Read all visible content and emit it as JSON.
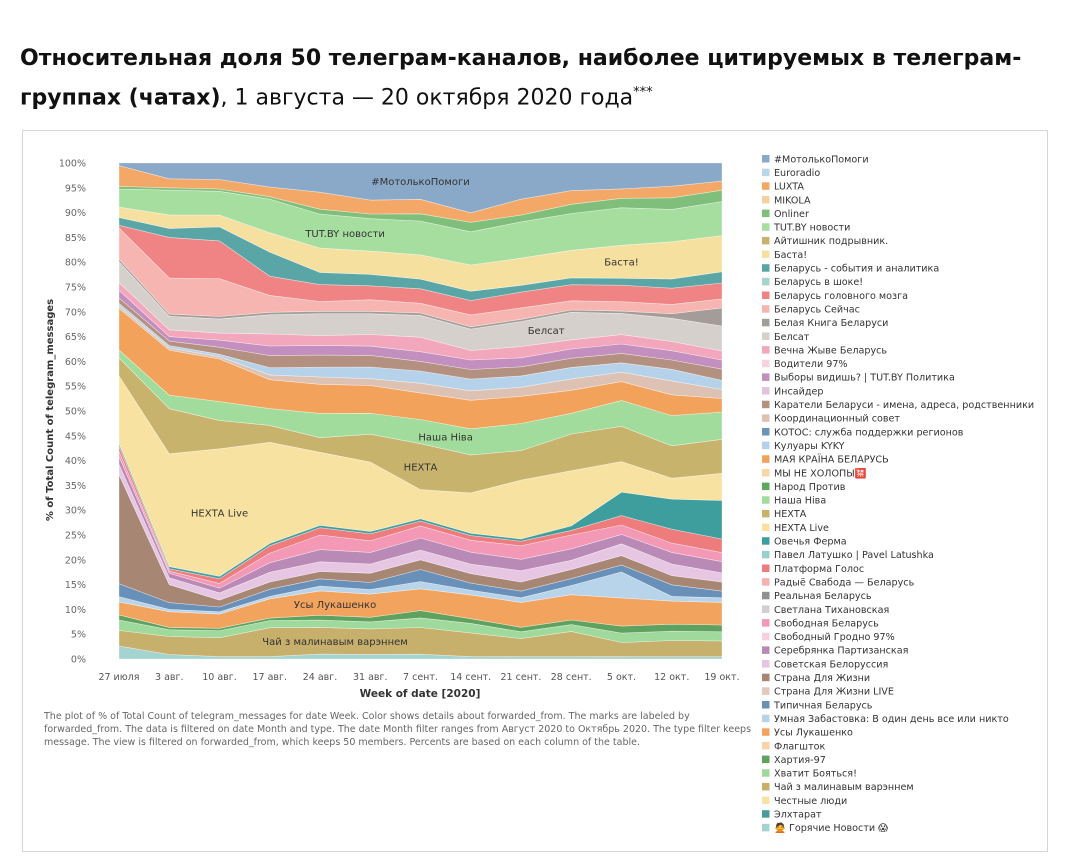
{
  "title": {
    "bold": "Относительная доля 50 телеграм-каналов, наиболее цитируемых в телеграм-группах (чатах)",
    "rest": ", 1 августа — 20 октября 2020 года",
    "sup": "***"
  },
  "note": "The plot of % of Total Count of telegram_messages for date Week. Color shows details about forwarded_from. The marks are labeled by forwarded_from. The data is filtered on date Month and type. The date Month filter ranges from Август 2020 to Октябрь 2020. The type filter keeps message. The view is filtered on forwarded_from, which keeps 50 members. Percents are based on each column of the table.",
  "chart_data": {
    "type": "area",
    "stacked": "percent",
    "xlabel": "Week of date [2020]",
    "ylabel": "% of Total Count of telegram_messages",
    "ylim": [
      0,
      100
    ],
    "yticks": [
      "0%",
      "5%",
      "10%",
      "15%",
      "20%",
      "25%",
      "30%",
      "35%",
      "40%",
      "45%",
      "50%",
      "55%",
      "60%",
      "65%",
      "70%",
      "75%",
      "80%",
      "85%",
      "90%",
      "95%",
      "100%"
    ],
    "categories": [
      "27 июля",
      "3 авг.",
      "10 авг.",
      "17 авг.",
      "24 авг.",
      "31 авг.",
      "7 сент.",
      "14 сент.",
      "21 сент.",
      "28 сент.",
      "5 окт.",
      "12 окт.",
      "19 окт."
    ],
    "legend_position": "right",
    "legend": [
      {
        "name": "#МотолькоПомоги",
        "color": "#8aa9c8"
      },
      {
        "name": "Euroradio",
        "color": "#b9d6ea"
      },
      {
        "name": "LUXTA",
        "color": "#f3a867"
      },
      {
        "name": "MIKOLA",
        "color": "#f7d0a0"
      },
      {
        "name": "Onliner",
        "color": "#7fbf7b"
      },
      {
        "name": "TUT.BY новости",
        "color": "#a6dea0"
      },
      {
        "name": "Айтишник подрывник.",
        "color": "#c9b26e"
      },
      {
        "name": "Баста!",
        "color": "#f6e0a0"
      },
      {
        "name": "Беларусь - события и аналитика",
        "color": "#5aa6a6"
      },
      {
        "name": "Беларусь в шоке!",
        "color": "#a8d4d0"
      },
      {
        "name": "Беларусь головного мозга",
        "color": "#f08383"
      },
      {
        "name": "Беларусь Сейчас",
        "color": "#f6b5b1"
      },
      {
        "name": "Белая Книга Беларуси",
        "color": "#a39c98"
      },
      {
        "name": "Белсат",
        "color": "#d6d0cc"
      },
      {
        "name": "Вечна Жывe Беларусь",
        "color": "#f2a7bd"
      },
      {
        "name": "Водители 97%",
        "color": "#f7d3e0"
      },
      {
        "name": "Выборы видишь? | TUT.BY Политика",
        "color": "#c38fbf"
      },
      {
        "name": "Инсайдер",
        "color": "#e2c3df"
      },
      {
        "name": "Каратели Беларуси - имена, адреса, родственники",
        "color": "#b3907f"
      },
      {
        "name": "Координационный совет",
        "color": "#ddc2b4"
      },
      {
        "name": "КОТОС: служба поддержки регионов",
        "color": "#6d93b8"
      },
      {
        "name": "Кулуары KYKY",
        "color": "#b5d2ea"
      },
      {
        "name": "МАЯ КРАЇНА БЕЛАРУСЬ",
        "color": "#f2a25a"
      },
      {
        "name": "МЫ НЕ ХОЛОПЫ🈲",
        "color": "#f8d6a8"
      },
      {
        "name": "Народ Против",
        "color": "#5fa85f"
      },
      {
        "name": "Наша Ніва",
        "color": "#a2dc9d"
      },
      {
        "name": "НЕХТА",
        "color": "#c8b36d"
      },
      {
        "name": "НЕХТА Live",
        "color": "#f8e2a2"
      },
      {
        "name": "Овечья Ферма",
        "color": "#3e9e9e"
      },
      {
        "name": "Павел Латушко | Pavel Latushka",
        "color": "#9ad0cb"
      },
      {
        "name": "Платформа Голос",
        "color": "#ee7c7c"
      },
      {
        "name": "Радыё Свабода — Беларусь",
        "color": "#f5b3ae"
      },
      {
        "name": "Реальная Беларусь",
        "color": "#8f8f8f"
      },
      {
        "name": "Светлана Тихановская",
        "color": "#cfcfcf"
      },
      {
        "name": "Свободная Беларусь",
        "color": "#f398b5"
      },
      {
        "name": "Свободный Гродно 97%",
        "color": "#f7cfe0"
      },
      {
        "name": "Серебрянка Партизанская",
        "color": "#b98ab6"
      },
      {
        "name": "Советская Белоруссия",
        "color": "#e6c6e2"
      },
      {
        "name": "Страна Для Жизни",
        "color": "#a88674"
      },
      {
        "name": "Страна Для Жизни LIVE",
        "color": "#e4c9bb"
      },
      {
        "name": "Типичная Беларусь",
        "color": "#6890b8"
      },
      {
        "name": "Умная Забастовка: В один день все или никто",
        "color": "#b8d4ea"
      },
      {
        "name": "Усы Лукашенко",
        "color": "#f2a45e"
      },
      {
        "name": "Флагшток",
        "color": "#f8d3a9"
      },
      {
        "name": "Хартия-97",
        "color": "#5fa15f"
      },
      {
        "name": "Хватит Бояться!",
        "color": "#9fd99b"
      },
      {
        "name": "Чай з малинавым варэннем",
        "color": "#c6b06c"
      },
      {
        "name": "Честные люди",
        "color": "#f8e3a6"
      },
      {
        "name": "Элхтарат",
        "color": "#4a9c9c"
      },
      {
        "name": "🙅 Горячие Новости 😱",
        "color": "#a5d3cf"
      }
    ],
    "series": [
      {
        "name": "🙅 Горячие Новости 😱",
        "values": [
          2.5,
          1.0,
          0.5,
          0.5,
          1.0,
          1.0,
          1.0,
          0.5,
          0.5,
          0.5,
          0.5,
          0.5,
          0.5
        ]
      },
      {
        "name": "Чай з малинавым варэннем",
        "values": [
          3.0,
          4.0,
          4.0,
          6.0,
          5.5,
          5.5,
          5.5,
          5.0,
          4.0,
          5.5,
          3.0,
          3.5,
          3.5
        ]
      },
      {
        "name": "Хватит Бояться!",
        "values": [
          2.0,
          1.5,
          1.5,
          1.5,
          1.5,
          1.5,
          2.0,
          2.0,
          1.5,
          1.5,
          2.0,
          2.0,
          2.0
        ]
      },
      {
        "name": "Хартия-97",
        "values": [
          1.0,
          0.5,
          0.5,
          0.5,
          1.0,
          1.0,
          1.5,
          1.0,
          1.0,
          1.0,
          1.5,
          1.5,
          1.5
        ]
      },
      {
        "name": "Усы Лукашенко",
        "values": [
          2.5,
          3.5,
          3.0,
          4.0,
          5.0,
          5.0,
          4.5,
          5.0,
          5.5,
          5.5,
          6.0,
          5.0,
          5.0
        ]
      },
      {
        "name": "Умная Забастовка: В один день все или никто",
        "values": [
          1.0,
          0.5,
          0.5,
          0.5,
          1.0,
          1.0,
          1.5,
          1.0,
          1.0,
          2.0,
          5.5,
          1.0,
          1.0
        ]
      },
      {
        "name": "Типичная Беларусь",
        "values": [
          2.5,
          1.5,
          1.0,
          1.5,
          1.5,
          1.5,
          2.5,
          1.5,
          1.5,
          1.5,
          1.5,
          2.5,
          1.5
        ]
      },
      {
        "name": "Страна Для Жизни",
        "values": [
          21.0,
          4.0,
          1.5,
          1.5,
          1.5,
          2.0,
          2.0,
          2.0,
          2.0,
          2.0,
          2.0,
          2.0,
          2.0
        ]
      },
      {
        "name": "Советская Белоруссия",
        "values": [
          2.0,
          1.5,
          1.5,
          2.0,
          2.0,
          2.0,
          2.0,
          2.0,
          2.5,
          2.0,
          2.5,
          2.5,
          2.0
        ]
      },
      {
        "name": "Серебрянка Партизанская",
        "values": [
          1.5,
          1.0,
          1.0,
          2.0,
          2.5,
          2.5,
          2.5,
          2.5,
          2.5,
          2.5,
          2.0,
          2.5,
          2.5
        ]
      },
      {
        "name": "Свободная Беларусь",
        "values": [
          1.0,
          0.5,
          1.0,
          2.0,
          3.0,
          2.5,
          2.5,
          2.5,
          3.0,
          3.0,
          2.0,
          2.0,
          2.0
        ]
      },
      {
        "name": "Платформа Голос",
        "values": [
          1.0,
          0.5,
          1.0,
          1.5,
          1.5,
          1.5,
          1.0,
          1.0,
          1.0,
          1.0,
          2.0,
          3.0,
          3.0
        ]
      },
      {
        "name": "Овечья Ферма",
        "values": [
          0.5,
          0.5,
          0.5,
          0.5,
          0.5,
          0.5,
          0.5,
          0.5,
          0.5,
          1.0,
          5.0,
          6.5,
          8.5
        ]
      },
      {
        "name": "НЕХТА Live",
        "values": [
          13.0,
          25.0,
          27.0,
          21.0,
          15.0,
          15.0,
          6.0,
          8.5,
          13.0,
          12.0,
          6.5,
          4.5,
          6.0
        ]
      },
      {
        "name": "НЕХТА",
        "values": [
          3.5,
          10.0,
          6.0,
          3.5,
          3.0,
          6.0,
          9.5,
          8.0,
          6.5,
          8.0,
          7.5,
          7.0,
          7.5
        ]
      },
      {
        "name": "Наша Ніва",
        "values": [
          1.5,
          3.0,
          4.0,
          3.5,
          5.0,
          4.5,
          5.0,
          5.5,
          6.0,
          4.5,
          5.5,
          6.5,
          6.0
        ]
      },
      {
        "name": "МАЯ КРАЇНА БЕЛАРУСЬ",
        "values": [
          8.0,
          10.0,
          9.0,
          6.0,
          6.0,
          6.0,
          5.5,
          6.0,
          6.0,
          5.0,
          4.0,
          4.5,
          3.0
        ]
      },
      {
        "name": "Координационный совет",
        "values": [
          0.5,
          0.5,
          0.5,
          1.0,
          1.5,
          1.5,
          2.0,
          2.0,
          2.0,
          2.5,
          2.0,
          3.0,
          2.0
        ]
      },
      {
        "name": "Кулуары KYKY",
        "values": [
          0.5,
          0.5,
          0.5,
          1.5,
          2.0,
          2.5,
          2.5,
          2.5,
          2.5,
          2.5,
          2.0,
          2.5,
          2.0
        ]
      },
      {
        "name": "Каратели Беларуси - имена, адреса, родственники",
        "values": [
          1.0,
          1.0,
          1.5,
          2.5,
          2.5,
          2.5,
          2.0,
          2.0,
          2.0,
          2.0,
          2.0,
          2.0,
          2.5
        ]
      },
      {
        "name": "Выборы видишь? | TUT.BY Политика",
        "values": [
          1.5,
          1.0,
          1.5,
          2.0,
          2.0,
          2.0,
          2.0,
          2.0,
          2.0,
          2.0,
          2.0,
          2.0,
          2.0
        ]
      },
      {
        "name": "Вечна Жывe Беларусь",
        "values": [
          1.5,
          1.5,
          1.5,
          2.5,
          2.0,
          2.5,
          3.0,
          2.0,
          2.5,
          2.0,
          2.0,
          2.0,
          2.0
        ]
      },
      {
        "name": "Белсат",
        "values": [
          4.0,
          3.0,
          3.0,
          4.0,
          4.5,
          4.5,
          4.5,
          4.5,
          5.5,
          6.0,
          4.5,
          5.0,
          5.5
        ]
      },
      {
        "name": "Белая Книга Беларуси",
        "values": [
          0.5,
          0.5,
          0.5,
          0.5,
          0.5,
          0.5,
          0.5,
          0.5,
          0.5,
          0.5,
          0.5,
          1.0,
          4.0
        ]
      },
      {
        "name": "Беларусь Сейчас",
        "values": [
          6.0,
          8.0,
          8.0,
          3.5,
          2.0,
          2.5,
          2.0,
          2.5,
          2.5,
          2.0,
          2.0,
          2.0,
          2.0
        ]
      },
      {
        "name": "Беларусь головного мозга",
        "values": [
          0.5,
          9.0,
          8.0,
          4.0,
          3.5,
          3.0,
          3.0,
          3.0,
          3.5,
          3.5,
          3.5,
          3.5,
          3.5
        ]
      },
      {
        "name": "Беларусь - события и аналитика",
        "values": [
          1.5,
          2.0,
          3.0,
          5.0,
          2.5,
          2.5,
          2.0,
          2.0,
          1.5,
          1.5,
          1.5,
          2.0,
          2.5
        ]
      },
      {
        "name": "Баста!",
        "values": [
          2.0,
          3.0,
          2.5,
          4.0,
          5.0,
          5.0,
          5.0,
          5.5,
          6.0,
          6.0,
          7.0,
          8.0,
          8.0
        ]
      },
      {
        "name": "TUT.BY новости",
        "values": [
          3.5,
          5.5,
          5.0,
          7.0,
          7.0,
          7.0,
          7.0,
          7.0,
          8.0,
          8.0,
          8.0,
          7.0,
          7.5
        ]
      },
      {
        "name": "Onliner",
        "values": [
          0.5,
          0.5,
          0.5,
          0.5,
          1.0,
          1.0,
          1.5,
          2.0,
          1.5,
          2.0,
          2.0,
          2.5,
          2.5
        ]
      },
      {
        "name": "LUXTA",
        "values": [
          4.0,
          2.0,
          2.0,
          2.0,
          3.5,
          3.0,
          3.0,
          2.0,
          3.5,
          3.0,
          2.0,
          2.5,
          2.0
        ]
      },
      {
        "name": "#МотолькоПомоги",
        "values": [
          0.5,
          3.5,
          3.5,
          5.0,
          6.0,
          8.0,
          7.5,
          10.5,
          8.0,
          6.0,
          5.5,
          5.0,
          4.0
        ]
      }
    ],
    "labels": [
      {
        "text": "#МотолькоПомоги",
        "series": "#МотолькоПомоги",
        "col": 6
      },
      {
        "text": "TUT.BY новости",
        "series": "TUT.BY новости",
        "col": 4.5
      },
      {
        "text": "Баста!",
        "series": "Баста!",
        "col": 10
      },
      {
        "text": "Белсат",
        "series": "Белсат",
        "col": 8.5
      },
      {
        "text": "Наша Ніва",
        "series": "Наша Ніва",
        "col": 6.5
      },
      {
        "text": "НЕХТА",
        "series": "НЕХТА",
        "col": 6.0
      },
      {
        "text": "НЕХТА Live",
        "series": "НЕХТА Live",
        "col": 2
      },
      {
        "text": "Усы Лукашенко",
        "series": "Усы Лукашенко",
        "col": 4.3
      },
      {
        "text": "Чай з малинавым варэннем",
        "series": "Чай з малинавым варэннем",
        "col": 4.3
      }
    ]
  }
}
